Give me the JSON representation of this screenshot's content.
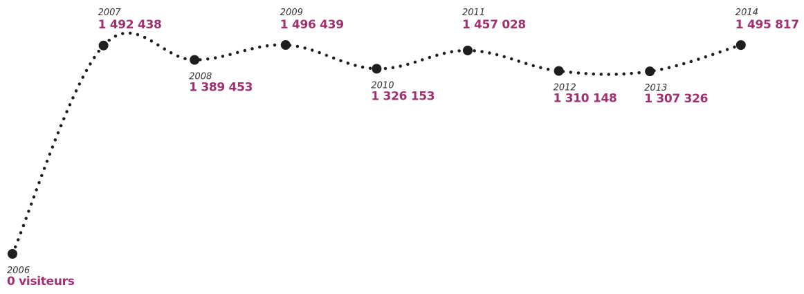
{
  "chart_data": {
    "type": "line",
    "categories": [
      "2006",
      "2007",
      "2008",
      "2009",
      "2010",
      "2011",
      "2012",
      "2013",
      "2014"
    ],
    "values": [
      0,
      1492438,
      1389453,
      1496439,
      1326153,
      1457028,
      1310148,
      1307326,
      1495817
    ],
    "value_labels": [
      "0 visiteurs",
      "1 492 438",
      "1 389 453",
      "1 496 439",
      "1 326 153",
      "1 457 028",
      "1 310 148",
      "1 307 326",
      "1 495 817"
    ],
    "color": "#1e1e1e",
    "label_color": "#a0306f"
  }
}
